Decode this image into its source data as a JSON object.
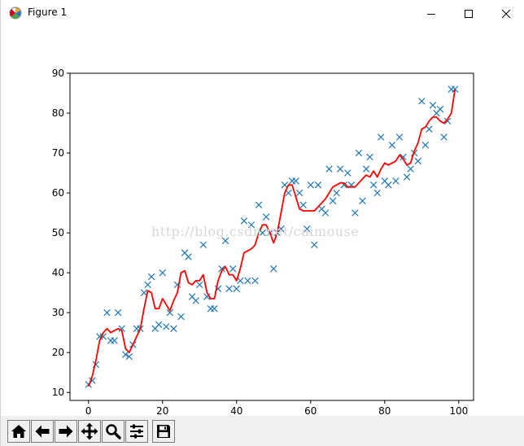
{
  "window": {
    "title": "Figure 1",
    "controls": [
      "minimize",
      "maximize",
      "close"
    ]
  },
  "watermark": "http://blog.csdn.net/caimouse",
  "toolbar": {
    "buttons": [
      {
        "name": "home",
        "icon": "home-icon"
      },
      {
        "name": "back",
        "icon": "arrow-left-icon"
      },
      {
        "name": "forward",
        "icon": "arrow-right-icon"
      },
      {
        "name": "pan",
        "icon": "move-icon"
      },
      {
        "name": "zoom",
        "icon": "magnifier-icon"
      },
      {
        "name": "subplots",
        "icon": "sliders-icon"
      },
      {
        "name": "save",
        "icon": "floppy-disk-icon"
      }
    ]
  },
  "colors": {
    "scatter": "#1f77b4",
    "line": "#ff0000",
    "toolbar_bg": "#f0f0f0"
  },
  "chart_data": {
    "type": "scatter",
    "title": "",
    "xlabel": "",
    "ylabel": "",
    "xlim": [
      -5,
      104
    ],
    "ylim": [
      8,
      90
    ],
    "xticks": [
      0,
      20,
      40,
      60,
      80,
      100
    ],
    "yticks": [
      10,
      20,
      30,
      40,
      50,
      60,
      70,
      80,
      90
    ],
    "grid": false,
    "series": [
      {
        "type": "scatter",
        "marker": "x",
        "x": [
          0,
          1,
          2,
          3,
          4,
          5,
          6,
          7,
          8,
          9,
          10,
          11,
          12,
          13,
          14,
          15,
          16,
          17,
          18,
          19,
          20,
          21,
          22,
          23,
          24,
          25,
          26,
          27,
          28,
          29,
          30,
          31,
          32,
          33,
          34,
          35,
          36,
          37,
          38,
          39,
          40,
          41,
          42,
          43,
          44,
          45,
          46,
          47,
          48,
          49,
          50,
          51,
          52,
          53,
          54,
          55,
          56,
          57,
          58,
          59,
          60,
          61,
          62,
          63,
          64,
          65,
          66,
          67,
          68,
          69,
          70,
          71,
          72,
          73,
          74,
          75,
          76,
          77,
          78,
          79,
          80,
          81,
          82,
          83,
          84,
          85,
          86,
          87,
          88,
          89,
          90,
          91,
          92,
          93,
          94,
          95,
          96,
          97,
          98,
          99
        ],
        "y": [
          12,
          13,
          17,
          24,
          24,
          30,
          23,
          23,
          30,
          26,
          19.5,
          19,
          22,
          26,
          26,
          35,
          37,
          39,
          26,
          27,
          40,
          26.5,
          30,
          26,
          37,
          29,
          45,
          44,
          34,
          33,
          37,
          47,
          34,
          31,
          31,
          36,
          41,
          48,
          36,
          41,
          36,
          38,
          53,
          38,
          52,
          38,
          57,
          50,
          54,
          50,
          41,
          50,
          51,
          62,
          60,
          63,
          63,
          60,
          57,
          51,
          62,
          47,
          62,
          56,
          55,
          66,
          58,
          60,
          66,
          62,
          65,
          62,
          55,
          70,
          58,
          66,
          69,
          62,
          60,
          74,
          63,
          62,
          72,
          63,
          74,
          69,
          64,
          66,
          70,
          68,
          83,
          72,
          76,
          82,
          80,
          81,
          74,
          78,
          86,
          86
        ]
      },
      {
        "type": "line",
        "x": [
          0,
          1,
          2,
          3,
          4,
          5,
          6,
          7,
          8,
          9,
          10,
          11,
          12,
          13,
          14,
          15,
          16,
          17,
          18,
          19,
          20,
          21,
          22,
          23,
          24,
          25,
          26,
          27,
          28,
          29,
          30,
          31,
          32,
          33,
          34,
          35,
          36,
          37,
          38,
          39,
          40,
          41,
          42,
          43,
          44,
          45,
          46,
          47,
          48,
          49,
          50,
          51,
          52,
          53,
          54,
          55,
          56,
          57,
          58,
          59,
          60,
          61,
          62,
          63,
          64,
          65,
          66,
          67,
          68,
          69,
          70,
          71,
          72,
          73,
          74,
          75,
          76,
          77,
          78,
          79,
          80,
          81,
          82,
          83,
          84,
          85,
          86,
          87,
          88,
          89,
          90,
          91,
          92,
          93,
          94,
          95,
          96,
          97,
          98,
          99
        ],
        "y": [
          11.5,
          14,
          18,
          23,
          25,
          26,
          25,
          25.5,
          26,
          25.5,
          21,
          20,
          22,
          24,
          26,
          31,
          35.5,
          35,
          31,
          31,
          33.5,
          32,
          30.5,
          33,
          35,
          40,
          40.5,
          37.5,
          37,
          38,
          38,
          39.5,
          35,
          33.5,
          33.5,
          38,
          40.5,
          41.5,
          39.5,
          39.5,
          38,
          41,
          45,
          45.5,
          46,
          47,
          50,
          52,
          52,
          50,
          47.5,
          50,
          55,
          60,
          62,
          62,
          59,
          56,
          55.5,
          55.5,
          55.5,
          55.5,
          56.5,
          57.5,
          58.5,
          60,
          61.5,
          62,
          62.5,
          62.5,
          61.5,
          61.5,
          61.5,
          62.5,
          63.5,
          64.5,
          64,
          65.5,
          64,
          66,
          67.5,
          67,
          67.5,
          68,
          69.5,
          68.5,
          67,
          67.5,
          70.5,
          72.5,
          76,
          76.5,
          78,
          79,
          79,
          78,
          77.5,
          78.5,
          80,
          86
        ]
      }
    ]
  }
}
